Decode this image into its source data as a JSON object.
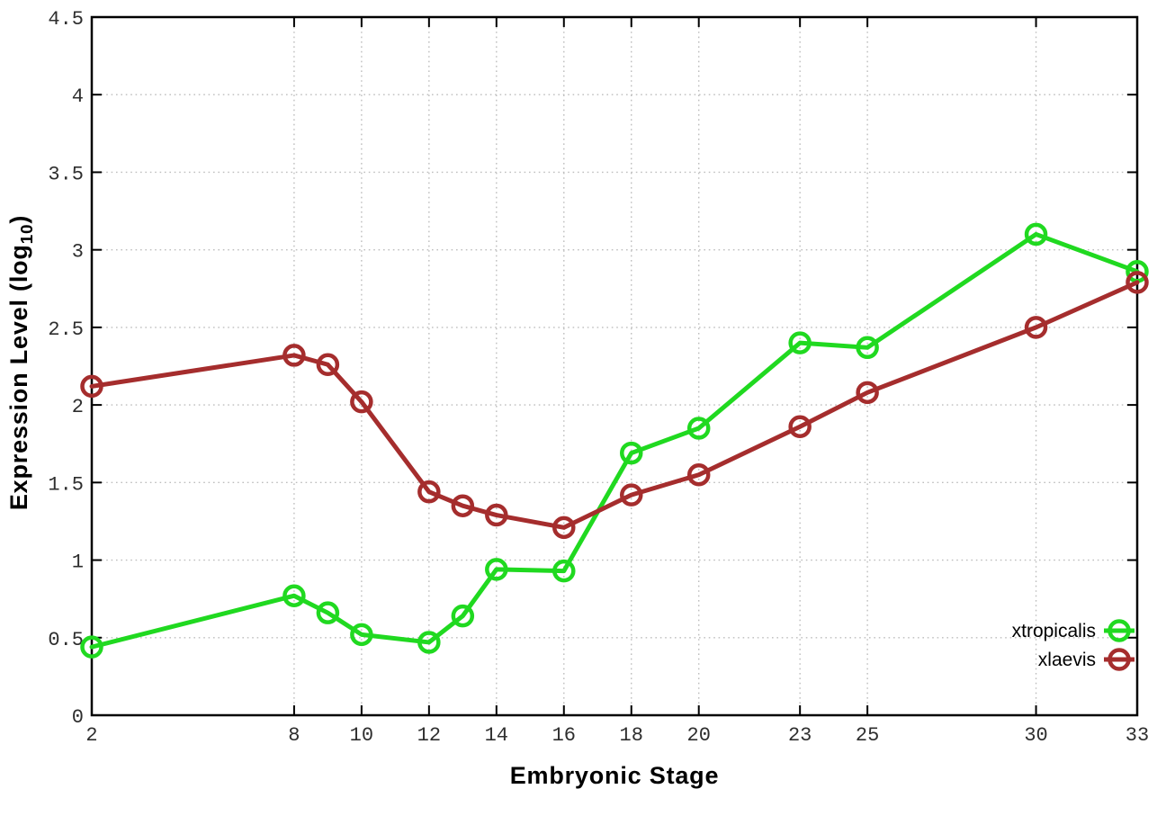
{
  "chart_data": {
    "type": "line",
    "title": "",
    "xlabel": "Embryonic Stage",
    "ylabel": "Expression Level (log10)",
    "ylabel_parts": {
      "prefix": "Expression Level (log",
      "subscript": "10",
      "suffix": ")"
    },
    "xlim": [
      2,
      33
    ],
    "ylim": [
      0,
      4.5
    ],
    "x_ticks": [
      2,
      8,
      10,
      12,
      14,
      16,
      18,
      20,
      23,
      25,
      30,
      33
    ],
    "y_ticks": [
      0,
      0.5,
      1,
      1.5,
      2,
      2.5,
      3,
      3.5,
      4,
      4.5
    ],
    "grid": true,
    "legend_position": "bottom-right",
    "x": [
      2,
      8,
      9,
      10,
      12,
      13,
      14,
      16,
      18,
      20,
      23,
      25,
      30,
      33
    ],
    "series": [
      {
        "name": "xtropicalis",
        "color": "#20d920",
        "marker": "open-circle",
        "values": [
          0.44,
          0.77,
          0.66,
          0.52,
          0.47,
          0.64,
          0.94,
          0.93,
          1.69,
          1.85,
          2.4,
          2.37,
          3.1,
          2.86
        ]
      },
      {
        "name": "xlaevis",
        "color": "#a52d2d",
        "marker": "open-circle",
        "values": [
          2.12,
          2.32,
          2.26,
          2.02,
          1.44,
          1.35,
          1.29,
          1.21,
          1.42,
          1.55,
          1.86,
          2.08,
          2.5,
          2.79
        ]
      }
    ]
  },
  "style": {
    "background": "#ffffff",
    "frame_color": "#000000",
    "grid_color": "#bdbdbd",
    "tick_color": "#000000",
    "tick_label_color": "#2e2e2e"
  }
}
